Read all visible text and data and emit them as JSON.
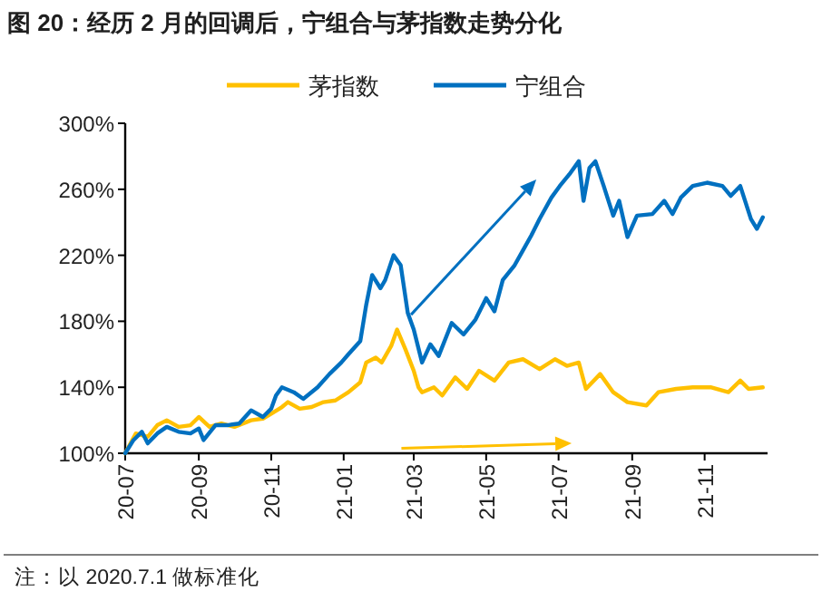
{
  "chart_data": {
    "type": "line",
    "title": "图 20：经历 2 月的回调后，宁组合与茅指数走势分化",
    "legend": "top",
    "grid": false,
    "line_style": "solid",
    "marker": "none",
    "xlim": [
      "2020-07-01",
      "2021-12-24"
    ],
    "xticks": [
      {
        "value": "2020-07",
        "label": "20-07"
      },
      {
        "value": "2020-09",
        "label": "20-09"
      },
      {
        "value": "2020-11",
        "label": "20-11"
      },
      {
        "value": "2021-01",
        "label": "21-01"
      },
      {
        "value": "2021-03",
        "label": "21-03"
      },
      {
        "value": "2021-05",
        "label": "21-05"
      },
      {
        "value": "2021-07",
        "label": "21-07"
      },
      {
        "value": "2021-09",
        "label": "21-09"
      },
      {
        "value": "2021-11",
        "label": "21-11"
      }
    ],
    "ylim": [
      100,
      300
    ],
    "yticks": [
      {
        "value": 100,
        "label": "100%"
      },
      {
        "value": 140,
        "label": "140%"
      },
      {
        "value": 180,
        "label": "180%"
      },
      {
        "value": 220,
        "label": "220%"
      },
      {
        "value": 260,
        "label": "260%"
      },
      {
        "value": 300,
        "label": "300%"
      }
    ],
    "annotations": [
      "注：以 2020.7.1 做标准化"
    ],
    "series": [
      {
        "name": "茅指数",
        "color": "#ffc000",
        "x": [
          "2020-07-01",
          "2020-07-10",
          "2020-07-20",
          "2020-07-28",
          "2020-08-05",
          "2020-08-15",
          "2020-08-25",
          "2020-09-01",
          "2020-09-10",
          "2020-09-20",
          "2020-10-01",
          "2020-10-15",
          "2020-10-25",
          "2020-11-01",
          "2020-11-10",
          "2020-11-15",
          "2020-11-25",
          "2020-12-05",
          "2020-12-15",
          "2020-12-25",
          "2021-01-05",
          "2021-01-15",
          "2021-01-20",
          "2021-01-28",
          "2021-02-02",
          "2021-02-10",
          "2021-02-15",
          "2021-02-22",
          "2021-03-01",
          "2021-03-05",
          "2021-03-08",
          "2021-03-18",
          "2021-03-25",
          "2021-04-05",
          "2021-04-15",
          "2021-04-25",
          "2021-05-08",
          "2021-05-20",
          "2021-06-01",
          "2021-06-15",
          "2021-06-28",
          "2021-07-08",
          "2021-07-18",
          "2021-07-24",
          "2021-08-05",
          "2021-08-16",
          "2021-08-28",
          "2021-09-13",
          "2021-09-23",
          "2021-10-08",
          "2021-10-22",
          "2021-11-06",
          "2021-11-21",
          "2021-12-01",
          "2021-12-08",
          "2021-12-20"
        ],
        "values": [
          100,
          112,
          110,
          117,
          120,
          116,
          117,
          122,
          116,
          118,
          116,
          120,
          121,
          124,
          128,
          131,
          127,
          128,
          131,
          132,
          137,
          143,
          155,
          158,
          155,
          165,
          175,
          163,
          150,
          140,
          137,
          140,
          135,
          146,
          139,
          150,
          144,
          155,
          157,
          151,
          157,
          153,
          155,
          139,
          148,
          137,
          131,
          129,
          137,
          139,
          140,
          140,
          137,
          144,
          139,
          140
        ]
      },
      {
        "name": "宁组合",
        "color": "#0070c0",
        "x": [
          "2020-07-01",
          "2020-07-08",
          "2020-07-15",
          "2020-07-20",
          "2020-07-28",
          "2020-08-05",
          "2020-08-15",
          "2020-08-25",
          "2020-09-01",
          "2020-09-05",
          "2020-09-15",
          "2020-09-25",
          "2020-10-05",
          "2020-10-15",
          "2020-10-25",
          "2020-11-01",
          "2020-11-05",
          "2020-11-10",
          "2020-11-20",
          "2020-11-28",
          "2020-12-10",
          "2020-12-20",
          "2020-12-30",
          "2021-01-05",
          "2021-01-15",
          "2021-01-20",
          "2021-01-25",
          "2021-02-01",
          "2021-02-05",
          "2021-02-12",
          "2021-02-18",
          "2021-02-24",
          "2021-03-01",
          "2021-03-08",
          "2021-03-15",
          "2021-03-22",
          "2021-04-02",
          "2021-04-12",
          "2021-04-22",
          "2021-05-01",
          "2021-05-08",
          "2021-05-15",
          "2021-05-25",
          "2021-06-01",
          "2021-06-08",
          "2021-06-15",
          "2021-06-25",
          "2021-07-02",
          "2021-07-10",
          "2021-07-18",
          "2021-07-22",
          "2021-07-27",
          "2021-08-01",
          "2021-08-08",
          "2021-08-16",
          "2021-08-21",
          "2021-08-28",
          "2021-09-05",
          "2021-09-18",
          "2021-09-28",
          "2021-10-05",
          "2021-10-12",
          "2021-10-22",
          "2021-11-03",
          "2021-11-16",
          "2021-11-23",
          "2021-12-01",
          "2021-12-10",
          "2021-12-15",
          "2021-12-20"
        ],
        "values": [
          100,
          108,
          113,
          106,
          112,
          116,
          113,
          112,
          115,
          108,
          117,
          117,
          118,
          126,
          122,
          127,
          135,
          140,
          137,
          133,
          140,
          148,
          155,
          160,
          168,
          190,
          208,
          200,
          205,
          220,
          214,
          185,
          175,
          155,
          166,
          159,
          179,
          172,
          181,
          194,
          186,
          205,
          214,
          223,
          232,
          242,
          255,
          262,
          269,
          277,
          253,
          273,
          277,
          262,
          244,
          253,
          231,
          244,
          245,
          253,
          245,
          255,
          262,
          264,
          262,
          256,
          262,
          242,
          236,
          243
        ]
      }
    ]
  }
}
